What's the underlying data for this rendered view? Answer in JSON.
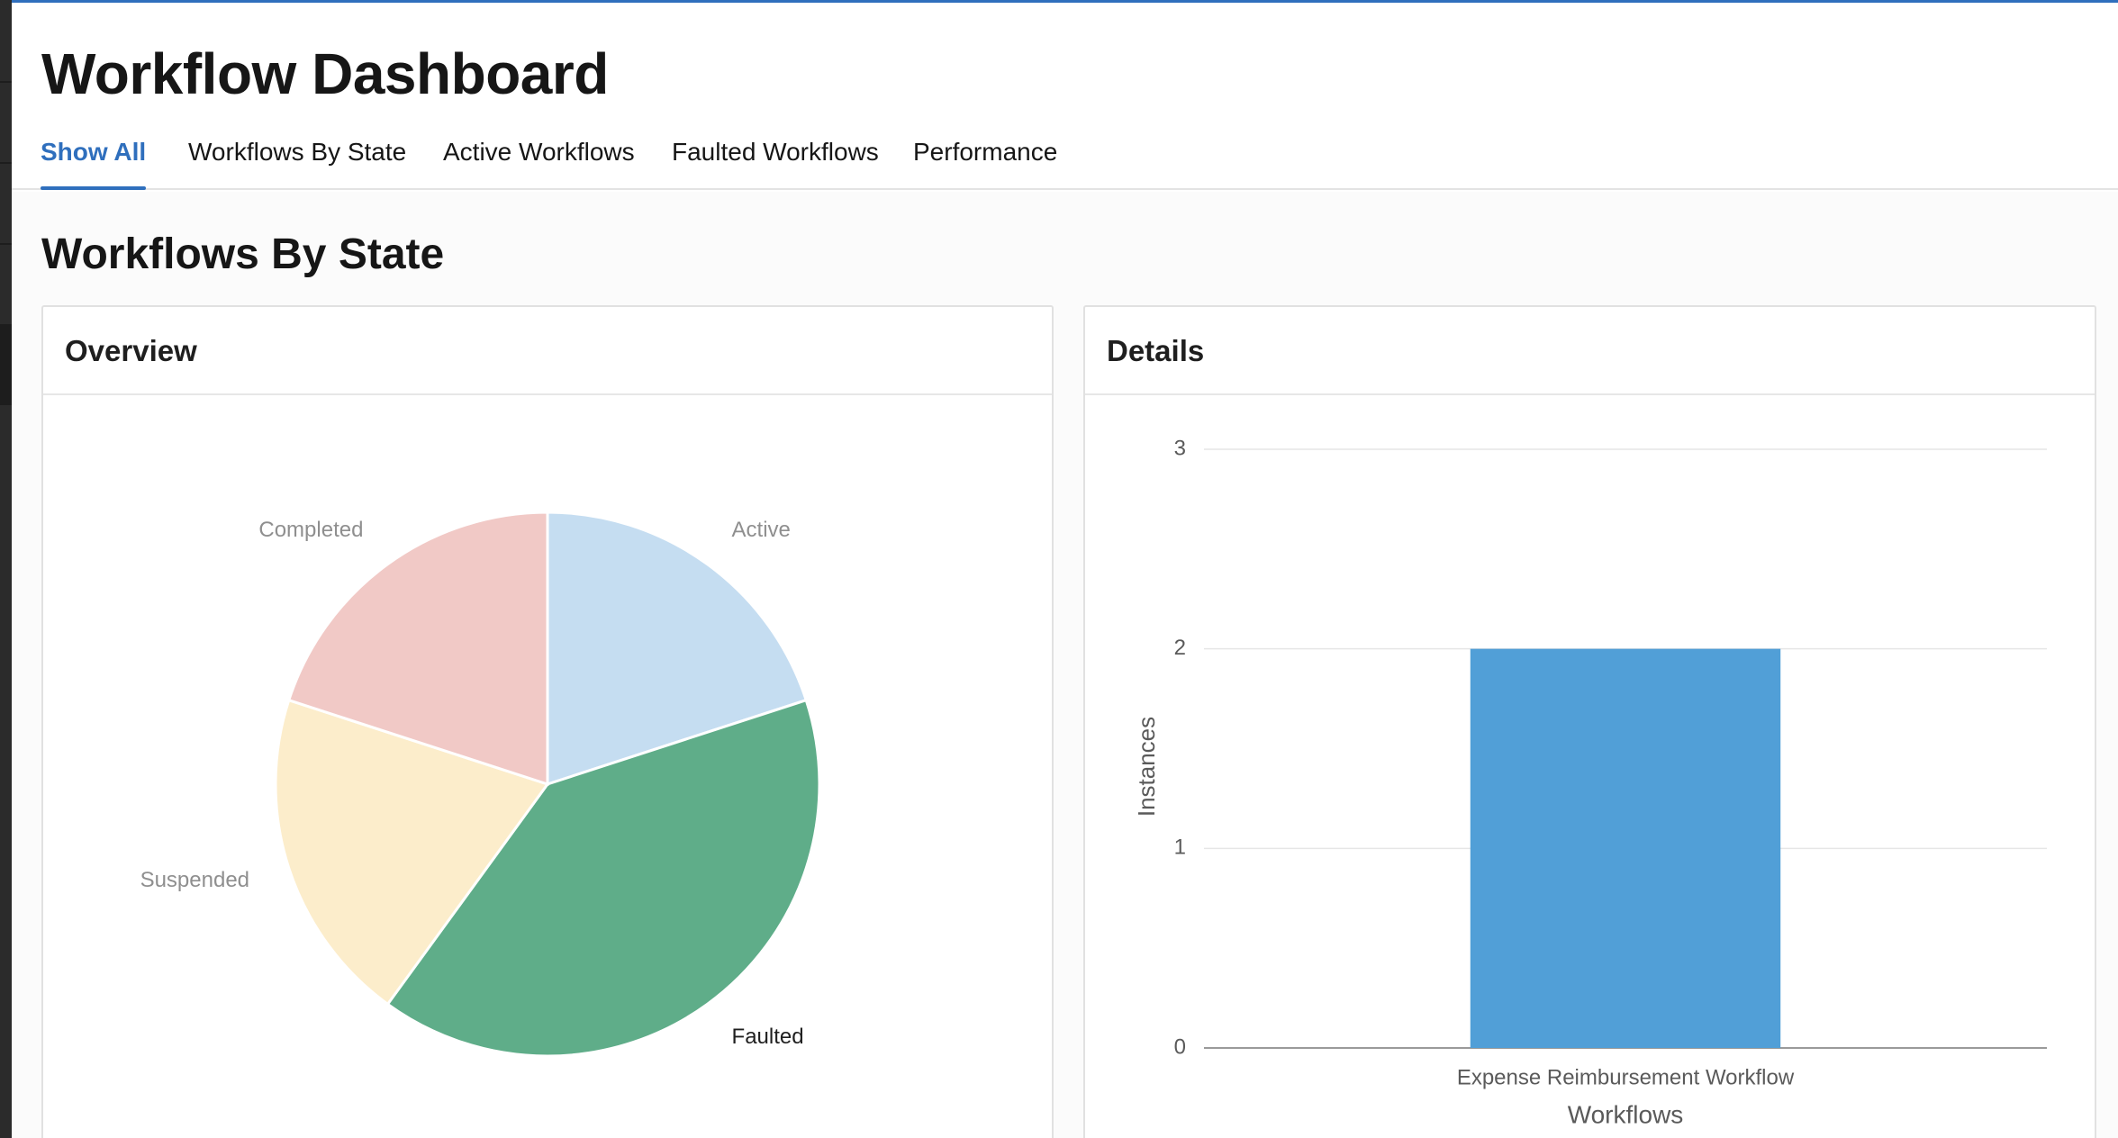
{
  "header": {
    "title": "Workflow Dashboard",
    "tabs": [
      {
        "label": "Show All",
        "active": true
      },
      {
        "label": "Workflows By State",
        "active": false
      },
      {
        "label": "Active Workflows",
        "active": false
      },
      {
        "label": "Faulted Workflows",
        "active": false
      },
      {
        "label": "Performance",
        "active": false
      }
    ]
  },
  "colors": {
    "accent": "#2f6fbd",
    "active": "#c5ddf1",
    "faulted": "#5fad89",
    "suspended": "#fcedcb",
    "completed": "#f1c9c6",
    "bar": "#519fd7"
  },
  "section": {
    "title": "Workflows By State"
  },
  "overview": {
    "title": "Overview"
  },
  "details": {
    "title": "Details"
  },
  "chart_data": [
    {
      "type": "pie",
      "slices": [
        {
          "label": "Active",
          "value": 1,
          "color": "#c5ddf1"
        },
        {
          "label": "Faulted",
          "value": 2,
          "color": "#5fad89"
        },
        {
          "label": "Suspended",
          "value": 1,
          "color": "#fcedcb"
        },
        {
          "label": "Completed",
          "value": 1,
          "color": "#f1c9c6"
        }
      ]
    },
    {
      "type": "bar",
      "categories": [
        "Expense Reimbursement Workflow"
      ],
      "values": [
        2
      ],
      "xlabel": "Workflows",
      "ylabel": "Instances",
      "ylim": [
        0,
        3
      ],
      "yticks": [
        0,
        1,
        2,
        3
      ],
      "grid": true,
      "color": "#519fd7"
    }
  ]
}
